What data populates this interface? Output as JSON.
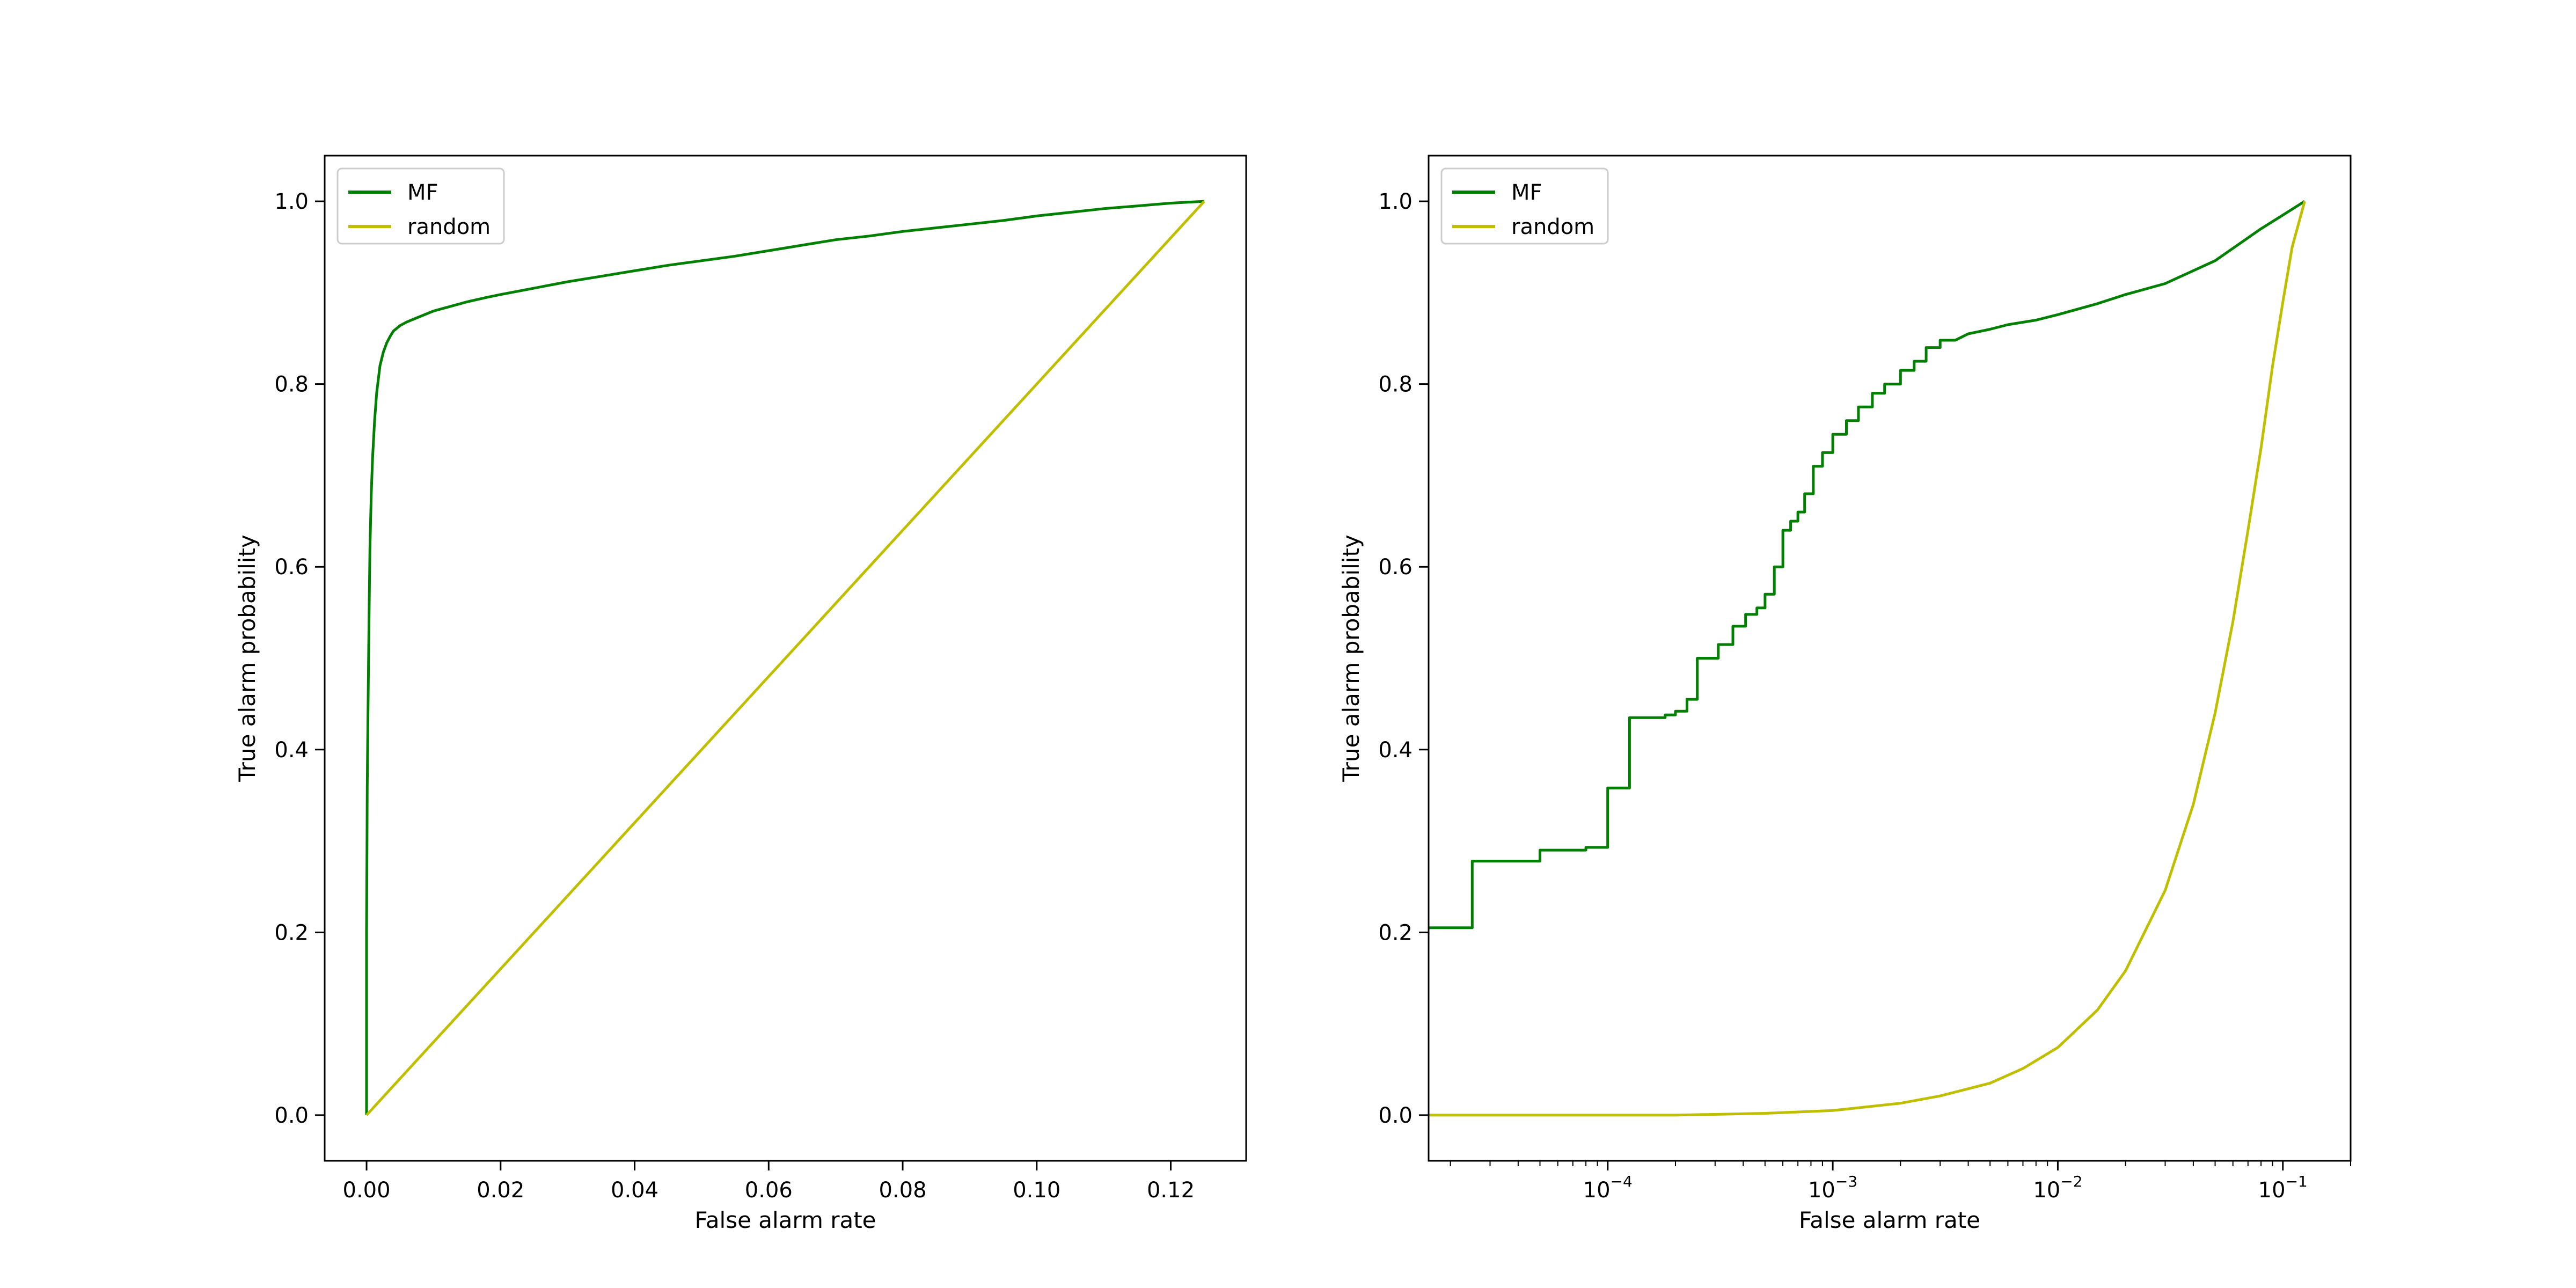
{
  "colors": {
    "background": "#ffffff",
    "axes": "#000000",
    "legend_border": "#cccccc"
  },
  "chart_data": [
    {
      "type": "line",
      "title": "",
      "xlabel": "False alarm rate",
      "ylabel": "True alarm probability",
      "xscale": "linear",
      "xlim": [
        -0.00625,
        0.13125
      ],
      "ylim": [
        -0.05,
        1.05
      ],
      "xticks": [
        {
          "value": 0.0,
          "label": "0.00"
        },
        {
          "value": 0.02,
          "label": "0.02"
        },
        {
          "value": 0.04,
          "label": "0.04"
        },
        {
          "value": 0.06,
          "label": "0.06"
        },
        {
          "value": 0.08,
          "label": "0.08"
        },
        {
          "value": 0.1,
          "label": "0.10"
        },
        {
          "value": 0.12,
          "label": "0.12"
        }
      ],
      "yticks": [
        {
          "value": 0.0,
          "label": "0.0"
        },
        {
          "value": 0.2,
          "label": "0.2"
        },
        {
          "value": 0.4,
          "label": "0.4"
        },
        {
          "value": 0.6,
          "label": "0.6"
        },
        {
          "value": 0.8,
          "label": "0.8"
        },
        {
          "value": 1.0,
          "label": "1.0"
        }
      ],
      "grid": false,
      "legend_position": "upper left",
      "series": [
        {
          "name": "MF",
          "color": "#008000",
          "x": [
            0.0,
            0.0,
            5e-05,
            0.0001,
            0.0002,
            0.0003,
            0.0004,
            0.0005,
            0.0007,
            0.0009,
            0.0012,
            0.0015,
            0.002,
            0.0025,
            0.003,
            0.0035,
            0.004,
            0.005,
            0.006,
            0.008,
            0.01,
            0.012,
            0.015,
            0.018,
            0.02,
            0.025,
            0.03,
            0.035,
            0.04,
            0.045,
            0.05,
            0.055,
            0.06,
            0.065,
            0.07,
            0.075,
            0.08,
            0.085,
            0.09,
            0.095,
            0.1,
            0.105,
            0.11,
            0.115,
            0.12,
            0.125
          ],
          "y": [
            0.0,
            0.2,
            0.28,
            0.36,
            0.43,
            0.5,
            0.56,
            0.62,
            0.68,
            0.72,
            0.76,
            0.79,
            0.82,
            0.835,
            0.845,
            0.852,
            0.858,
            0.864,
            0.868,
            0.874,
            0.88,
            0.884,
            0.89,
            0.895,
            0.898,
            0.905,
            0.912,
            0.918,
            0.924,
            0.93,
            0.935,
            0.94,
            0.946,
            0.952,
            0.958,
            0.962,
            0.967,
            0.971,
            0.975,
            0.979,
            0.984,
            0.988,
            0.992,
            0.995,
            0.998,
            1.0
          ]
        },
        {
          "name": "random",
          "color": "#bfbf00",
          "x": [
            0.0,
            0.125
          ],
          "y": [
            0.0,
            1.0
          ]
        }
      ]
    },
    {
      "type": "line",
      "title": "",
      "xlabel": "False alarm rate",
      "ylabel": "True alarm probability",
      "xscale": "log",
      "xlim": [
        1.6e-05,
        0.2
      ],
      "ylim": [
        -0.05,
        1.05
      ],
      "xticks": [
        {
          "value": 0.0001,
          "base": "10",
          "exp": "−4"
        },
        {
          "value": 0.001,
          "base": "10",
          "exp": "−3"
        },
        {
          "value": 0.01,
          "base": "10",
          "exp": "−2"
        },
        {
          "value": 0.1,
          "base": "10",
          "exp": "−1"
        }
      ],
      "yticks": [
        {
          "value": 0.0,
          "label": "0.0"
        },
        {
          "value": 0.2,
          "label": "0.2"
        },
        {
          "value": 0.4,
          "label": "0.4"
        },
        {
          "value": 0.6,
          "label": "0.6"
        },
        {
          "value": 0.8,
          "label": "0.8"
        },
        {
          "value": 1.0,
          "label": "1.0"
        }
      ],
      "grid": false,
      "legend_position": "upper left",
      "series": [
        {
          "name": "MF",
          "color": "#008000",
          "x": [
            1.6e-05,
            2.5e-05,
            2.5e-05,
            5e-05,
            5e-05,
            8e-05,
            8e-05,
            0.0001,
            0.0001,
            0.000125,
            0.000125,
            0.00018,
            0.00018,
            0.0002,
            0.0002,
            0.000225,
            0.000225,
            0.00025,
            0.00025,
            0.00031,
            0.00031,
            0.00036,
            0.00036,
            0.00041,
            0.00041,
            0.00046,
            0.00046,
            0.0005,
            0.0005,
            0.00055,
            0.00055,
            0.0006,
            0.0006,
            0.00065,
            0.00065,
            0.0007,
            0.0007,
            0.00075,
            0.00075,
            0.00082,
            0.00082,
            0.0009,
            0.0009,
            0.001,
            0.001,
            0.00115,
            0.00115,
            0.0013,
            0.0013,
            0.0015,
            0.0015,
            0.0017,
            0.0017,
            0.002,
            0.002,
            0.0023,
            0.0023,
            0.0026,
            0.0026,
            0.003,
            0.003,
            0.0035,
            0.004,
            0.005,
            0.006,
            0.008,
            0.01,
            0.015,
            0.02,
            0.03,
            0.05,
            0.08,
            0.1,
            0.125
          ],
          "y": [
            0.205,
            0.205,
            0.278,
            0.278,
            0.29,
            0.29,
            0.293,
            0.293,
            0.358,
            0.358,
            0.435,
            0.435,
            0.438,
            0.438,
            0.442,
            0.442,
            0.455,
            0.455,
            0.5,
            0.5,
            0.515,
            0.515,
            0.535,
            0.535,
            0.548,
            0.548,
            0.555,
            0.555,
            0.57,
            0.57,
            0.6,
            0.6,
            0.64,
            0.64,
            0.65,
            0.65,
            0.66,
            0.66,
            0.68,
            0.68,
            0.71,
            0.71,
            0.725,
            0.725,
            0.745,
            0.745,
            0.76,
            0.76,
            0.775,
            0.775,
            0.79,
            0.79,
            0.8,
            0.8,
            0.815,
            0.815,
            0.825,
            0.825,
            0.84,
            0.84,
            0.848,
            0.848,
            0.855,
            0.86,
            0.865,
            0.87,
            0.876,
            0.888,
            0.898,
            0.91,
            0.935,
            0.97,
            0.985,
            1.0
          ]
        },
        {
          "name": "random",
          "color": "#bfbf00",
          "x": [
            1.6e-05,
            0.0001,
            0.0002,
            0.0005,
            0.001,
            0.002,
            0.003,
            0.005,
            0.007,
            0.01,
            0.015,
            0.02,
            0.03,
            0.04,
            0.05,
            0.06,
            0.07,
            0.08,
            0.09,
            0.1,
            0.11,
            0.125
          ],
          "y": [
            0.0,
            0.0,
            0.0,
            0.002,
            0.005,
            0.013,
            0.021,
            0.035,
            0.051,
            0.074,
            0.115,
            0.158,
            0.246,
            0.34,
            0.44,
            0.54,
            0.64,
            0.73,
            0.82,
            0.89,
            0.95,
            1.0
          ]
        }
      ]
    }
  ]
}
